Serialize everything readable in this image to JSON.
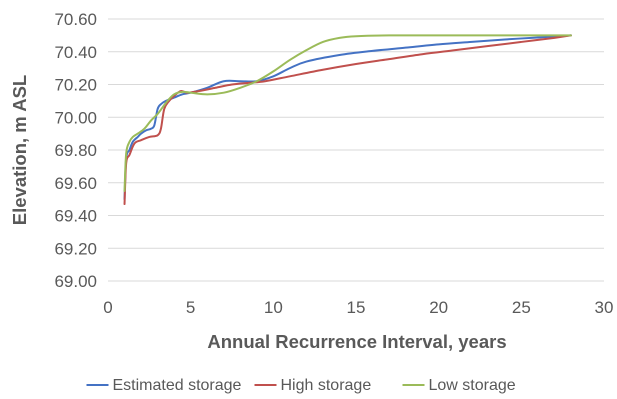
{
  "chart_data": {
    "type": "line",
    "title": "",
    "xlabel": "Annual Recurrence Interval, years",
    "ylabel": "Elevation, m ASL",
    "xlim": [
      0,
      30
    ],
    "ylim": [
      69.0,
      70.6
    ],
    "x_ticks": [
      "0",
      "5",
      "10",
      "15",
      "20",
      "25",
      "30"
    ],
    "y_ticks": [
      "69.00",
      "69.20",
      "69.40",
      "69.60",
      "69.80",
      "70.00",
      "70.20",
      "70.40",
      "70.60"
    ],
    "grid": true,
    "legend_position": "bottom",
    "series": [
      {
        "name": "Estimated storage",
        "color": "#4472c4",
        "points": [
          [
            1.0,
            69.5
          ],
          [
            1.1,
            69.75
          ],
          [
            1.3,
            69.8
          ],
          [
            1.5,
            69.85
          ],
          [
            1.8,
            69.88
          ],
          [
            2.0,
            69.9
          ],
          [
            2.3,
            69.92
          ],
          [
            2.6,
            69.93
          ],
          [
            2.8,
            69.95
          ],
          [
            3.0,
            70.05
          ],
          [
            3.2,
            70.08
          ],
          [
            3.5,
            70.1
          ],
          [
            4.0,
            70.12
          ],
          [
            4.5,
            70.14
          ],
          [
            5.0,
            70.15
          ],
          [
            6.0,
            70.18
          ],
          [
            7.0,
            70.22
          ],
          [
            8.0,
            70.22
          ],
          [
            9.0,
            70.22
          ],
          [
            10.0,
            70.25
          ],
          [
            11.0,
            70.3
          ],
          [
            12.0,
            70.34
          ],
          [
            14.0,
            70.38
          ],
          [
            16.0,
            70.405
          ],
          [
            18.0,
            70.425
          ],
          [
            20.0,
            70.445
          ],
          [
            22.0,
            70.46
          ],
          [
            24.0,
            70.475
          ],
          [
            26.0,
            70.487
          ],
          [
            28.0,
            70.5
          ]
        ]
      },
      {
        "name": "High storage",
        "color": "#c0504d",
        "points": [
          [
            1.0,
            69.47
          ],
          [
            1.1,
            69.72
          ],
          [
            1.3,
            69.77
          ],
          [
            1.6,
            69.84
          ],
          [
            2.0,
            69.86
          ],
          [
            2.5,
            69.88
          ],
          [
            3.0,
            69.89
          ],
          [
            3.2,
            69.93
          ],
          [
            3.4,
            70.05
          ],
          [
            3.7,
            70.1
          ],
          [
            4.0,
            70.13
          ],
          [
            4.4,
            70.16
          ],
          [
            4.8,
            70.15
          ],
          [
            5.5,
            70.16
          ],
          [
            6.5,
            70.18
          ],
          [
            7.5,
            70.2
          ],
          [
            8.5,
            70.21
          ],
          [
            9.5,
            70.22
          ],
          [
            11.0,
            70.25
          ],
          [
            13.0,
            70.29
          ],
          [
            15.0,
            70.325
          ],
          [
            17.0,
            70.355
          ],
          [
            19.0,
            70.385
          ],
          [
            21.0,
            70.41
          ],
          [
            23.0,
            70.435
          ],
          [
            25.0,
            70.46
          ],
          [
            27.0,
            70.485
          ],
          [
            28.0,
            70.5
          ]
        ]
      },
      {
        "name": "Low storage",
        "color": "#9bbb59",
        "points": [
          [
            1.0,
            69.55
          ],
          [
            1.1,
            69.78
          ],
          [
            1.3,
            69.85
          ],
          [
            1.5,
            69.88
          ],
          [
            1.8,
            69.9
          ],
          [
            2.2,
            69.93
          ],
          [
            2.6,
            69.98
          ],
          [
            3.0,
            70.02
          ],
          [
            3.3,
            70.06
          ],
          [
            3.6,
            70.1
          ],
          [
            4.0,
            70.14
          ],
          [
            4.5,
            70.155
          ],
          [
            5.0,
            70.15
          ],
          [
            6.0,
            70.14
          ],
          [
            7.0,
            70.15
          ],
          [
            8.0,
            70.18
          ],
          [
            9.0,
            70.22
          ],
          [
            10.0,
            70.28
          ],
          [
            11.0,
            70.35
          ],
          [
            12.0,
            70.41
          ],
          [
            13.0,
            70.46
          ],
          [
            14.0,
            70.485
          ],
          [
            15.0,
            70.495
          ],
          [
            17.0,
            70.5
          ],
          [
            20.0,
            70.5
          ],
          [
            23.0,
            70.5
          ],
          [
            26.0,
            70.5
          ],
          [
            28.0,
            70.5
          ]
        ]
      }
    ]
  }
}
